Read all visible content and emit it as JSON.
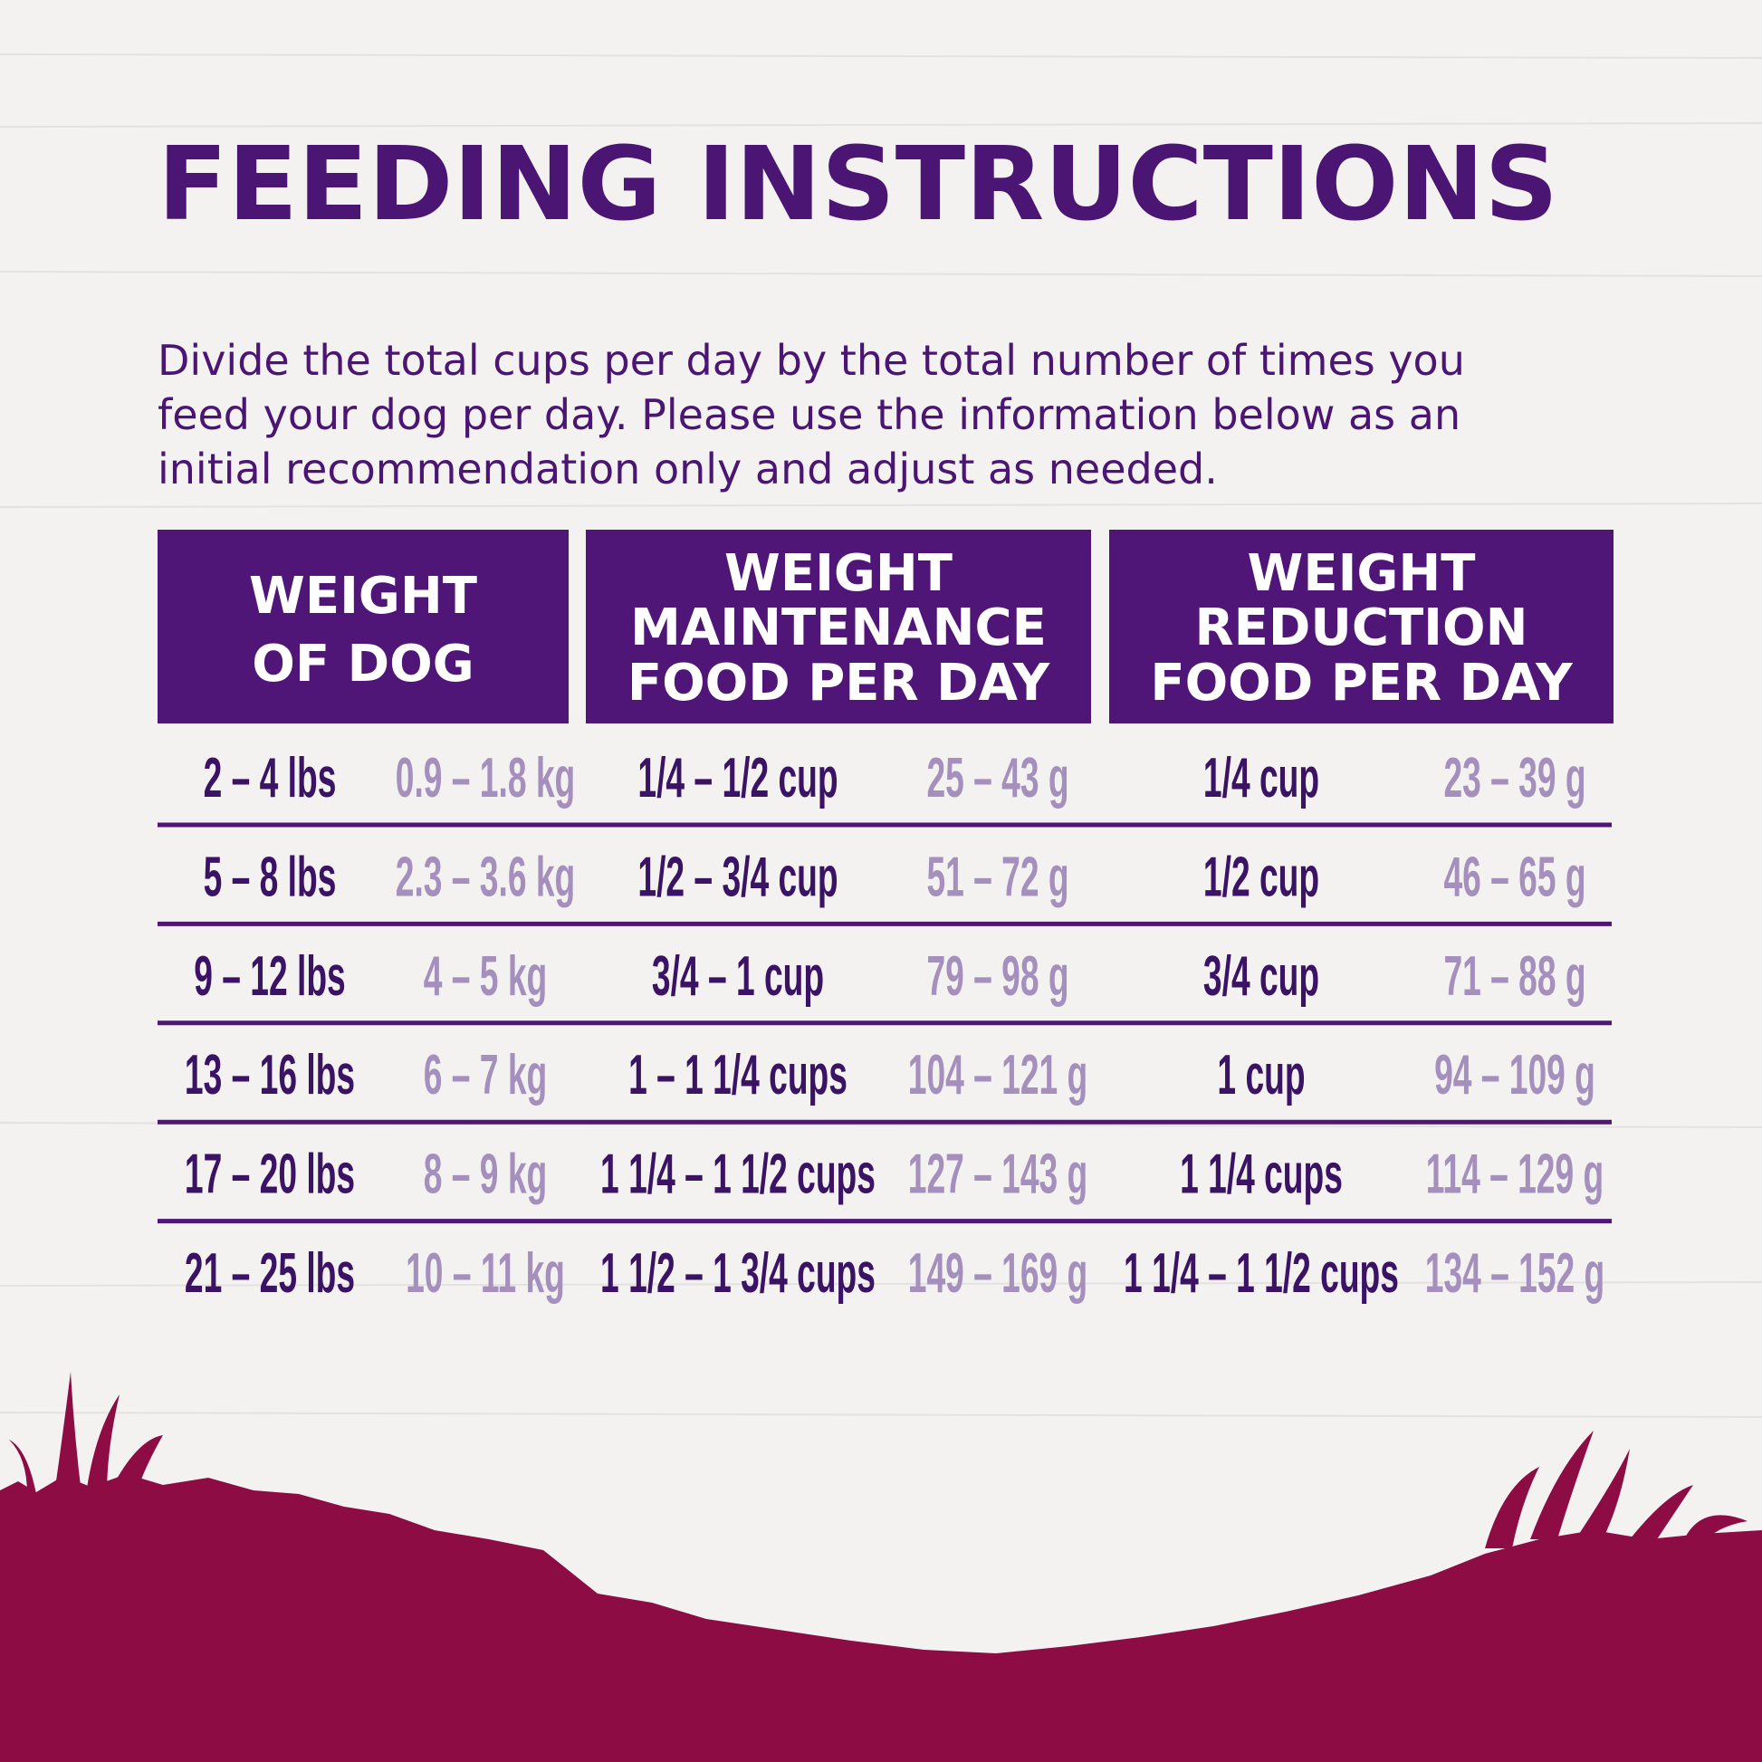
{
  "title": "FEEDING INSTRUCTIONS",
  "intro": [
    "Divide the total cups per day by the total number of times you",
    "feed your dog per day. Please use the information below as an",
    "initial recommendation only and adjust as needed."
  ],
  "table": {
    "headers": [
      [
        "WEIGHT",
        "OF DOG"
      ],
      [
        "WEIGHT",
        "MAINTENANCE",
        "FOOD PER DAY"
      ],
      [
        "WEIGHT",
        "REDUCTION",
        "FOOD PER DAY"
      ]
    ],
    "rows": [
      [
        "2 – 4 lbs",
        "0.9 – 1.8 kg",
        "1/4 – 1/2 cup",
        "25 – 43 g",
        "1/4 cup",
        "23 – 39 g"
      ],
      [
        "5 – 8 lbs",
        "2.3 – 3.6 kg",
        "1/2 – 3/4 cup",
        "51 – 72 g",
        "1/2 cup",
        "46 – 65 g"
      ],
      [
        "9 – 12 lbs",
        "4 – 5 kg",
        "3/4 – 1 cup",
        "79 – 98 g",
        "3/4 cup",
        "71 – 88 g"
      ],
      [
        "13 – 16 lbs",
        "6 – 7 kg",
        "1 – 1 1/4 cups",
        "104 – 121 g",
        "1 cup",
        "94 – 109 g"
      ],
      [
        "17 – 20 lbs",
        "8 – 9 kg",
        "1 1/4 – 1 1/2 cups",
        "127 – 143 g",
        "1 1/4 cups",
        "114 – 129 g"
      ],
      [
        "21 – 25 lbs",
        "10 – 11 kg",
        "1 1/2 – 1 3/4 cups",
        "149 – 169 g",
        "1 1/4 – 1 1/2 cups",
        "134 – 152 g"
      ]
    ]
  }
}
